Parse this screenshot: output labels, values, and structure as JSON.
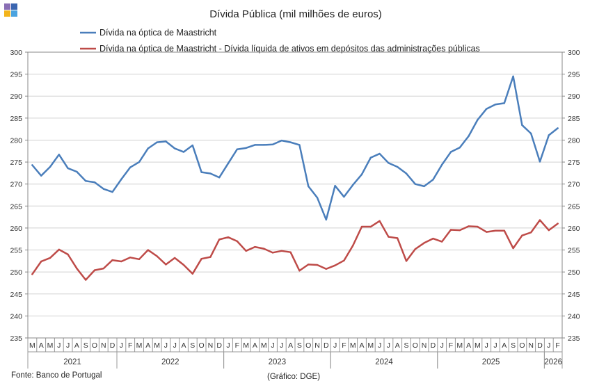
{
  "chart_data": {
    "type": "line",
    "title": "Dívida Pública (mil milhões de euros)",
    "y_range": [
      235,
      300
    ],
    "y_ticks": [
      235,
      240,
      245,
      250,
      255,
      260,
      265,
      270,
      275,
      280,
      285,
      290,
      295,
      300
    ],
    "grid": true,
    "legend_position": "top",
    "months": [
      "M",
      "A",
      "M",
      "J",
      "J",
      "A",
      "S",
      "O",
      "N",
      "D",
      "J",
      "F",
      "M",
      "A",
      "M",
      "J",
      "J",
      "A",
      "S",
      "O",
      "N",
      "D",
      "J",
      "F",
      "M",
      "A",
      "M",
      "J",
      "J",
      "A",
      "S",
      "O",
      "N",
      "D",
      "J",
      "F",
      "M",
      "A",
      "M",
      "J",
      "J",
      "A",
      "S",
      "O",
      "N",
      "D",
      "J",
      "F",
      "M",
      "A",
      "M",
      "J",
      "J",
      "A",
      "S",
      "O",
      "N",
      "D",
      "J",
      "F"
    ],
    "years": [
      {
        "label": "2021",
        "start": 0,
        "count": 10
      },
      {
        "label": "2022",
        "start": 10,
        "count": 12
      },
      {
        "label": "2023",
        "start": 22,
        "count": 12
      },
      {
        "label": "2024",
        "start": 34,
        "count": 12
      },
      {
        "label": "2025",
        "start": 46,
        "count": 12
      },
      {
        "label": "2026",
        "start": 58,
        "count": 2
      }
    ],
    "series": [
      {
        "name": "Dívida na óptica de Maastricht",
        "color": "#4a7ebb",
        "values": [
          274.3,
          271.9,
          273.9,
          276.7,
          273.6,
          272.8,
          270.7,
          270.4,
          268.9,
          268.2,
          271.1,
          273.8,
          275.0,
          278.1,
          279.5,
          279.7,
          278.1,
          277.3,
          278.8,
          272.7,
          272.4,
          271.5,
          274.7,
          277.9,
          278.2,
          278.9,
          278.9,
          279.0,
          279.9,
          279.5,
          278.9,
          269.5,
          266.9,
          261.9,
          269.6,
          267.1,
          269.8,
          272.2,
          276.0,
          276.9,
          274.8,
          273.9,
          272.4,
          270.0,
          269.5,
          271.0,
          274.4,
          277.3,
          278.3,
          280.9,
          284.6,
          287.1,
          288.1,
          288.4,
          294.5,
          283.4,
          281.5,
          275.1,
          281.1,
          282.7
        ]
      },
      {
        "name": "Dívida na óptica de Maastricht - Dívida líquida de ativos em depósitos das administrações públicas",
        "color": "#be4b48",
        "values": [
          249.5,
          252.4,
          253.2,
          255.1,
          254.0,
          250.8,
          248.2,
          250.4,
          250.8,
          252.7,
          252.4,
          253.3,
          252.9,
          255.0,
          253.6,
          251.7,
          253.2,
          251.6,
          249.6,
          253.0,
          253.4,
          257.4,
          257.9,
          257.0,
          254.8,
          255.7,
          255.3,
          254.4,
          254.8,
          254.5,
          250.3,
          251.7,
          251.6,
          250.7,
          251.5,
          252.6,
          256.0,
          260.3,
          260.3,
          261.6,
          258.0,
          257.7,
          252.5,
          255.2,
          256.6,
          257.6,
          256.9,
          259.6,
          259.5,
          260.4,
          260.3,
          259.1,
          259.4,
          259.4,
          255.4,
          258.3,
          259.0,
          261.8,
          259.5,
          261.0
        ]
      }
    ]
  },
  "footer": {
    "source": "Fonte: Banco de Portugal",
    "credit": "(Gráfico: DGE)"
  },
  "logo_colors": [
    "#8a6fb5",
    "#3b66b0",
    "#f3b41b",
    "#4aa3df"
  ]
}
